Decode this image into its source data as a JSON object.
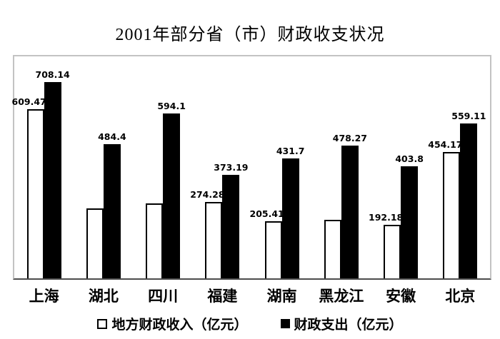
{
  "title": "2001年部分省（市）财政收支状况",
  "colors": {
    "income_bar": "#ffffff",
    "expense_bar": "#000000",
    "plot_border": "#c3c3c3",
    "axis_line": "#4d4d4d",
    "text": "#000000"
  },
  "chart_data": {
    "type": "bar",
    "title": "2001年部分省（市）财政收支状况",
    "categories": [
      "上海",
      "湖北",
      "四川",
      "福建",
      "湖南",
      "黑龙江",
      "安徽",
      "北京"
    ],
    "series": [
      {
        "name": "地方财政收入（亿元）",
        "key": "income",
        "values": [
          609.47,
          252,
          270,
          274.28,
          205.41,
          211,
          192.18,
          454.17
        ],
        "labels": [
          "609.47",
          "",
          "",
          "274.28",
          "205.41",
          "",
          "192.18",
          "454.17"
        ]
      },
      {
        "name": "财政支出（亿元）",
        "key": "expense",
        "values": [
          708.14,
          484.4,
          594.1,
          373.19,
          431.7,
          478.27,
          403.8,
          559.11
        ],
        "labels": [
          "708.14",
          "484.4",
          "594.1",
          "373.19",
          "431.7",
          "478.27",
          "403.8",
          "559.11"
        ]
      }
    ],
    "xlabel": "",
    "ylabel": "",
    "ylim": [
      0,
      800
    ],
    "grid": false,
    "legend_position": "bottom",
    "value_labels_shown": true
  },
  "legend": {
    "items": [
      {
        "key": "income",
        "label": "地方财政收入（亿元）"
      },
      {
        "key": "expense",
        "label": "财政支出（亿元）"
      }
    ]
  }
}
